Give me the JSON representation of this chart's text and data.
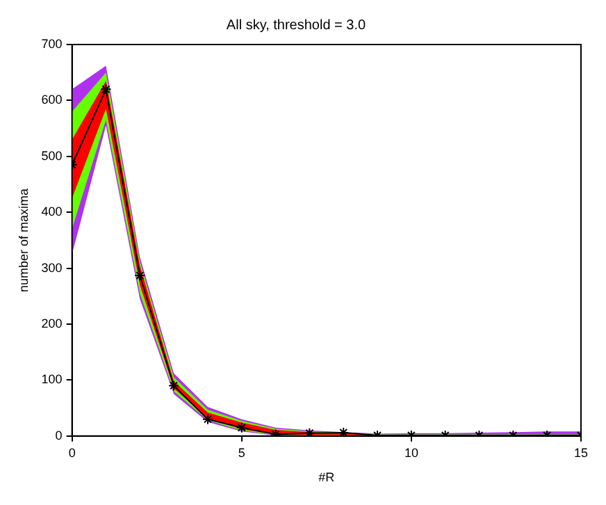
{
  "chart_data": {
    "type": "line",
    "title": "All sky, threshold = 3.0",
    "xlabel": "#R",
    "ylabel": "number of maxima",
    "x": [
      0,
      1,
      2,
      3,
      4,
      5,
      6,
      7,
      8,
      9,
      10,
      11,
      12,
      13,
      14,
      15
    ],
    "series": [
      {
        "color": "#000000",
        "marker": "cross",
        "values": [
          485,
          620,
          287,
          90,
          30,
          15,
          3,
          5,
          6,
          1,
          1,
          1,
          1,
          1,
          1,
          1
        ]
      },
      {
        "color": "#ff0000",
        "values": [
          null,
          null,
          null,
          null,
          null,
          null,
          null,
          null,
          null,
          null,
          null,
          null,
          null,
          null,
          null,
          null
        ],
        "lower": [
          425,
          585,
          270,
          85,
          32,
          12,
          3,
          2,
          2,
          1,
          1,
          1,
          1,
          1,
          1,
          1
        ],
        "upper": [
          530,
          635,
          305,
          98,
          42,
          24,
          11,
          7,
          5,
          2,
          2,
          2,
          2,
          2,
          2,
          2
        ]
      },
      {
        "color": "#66ff00",
        "values": [
          null,
          null,
          null,
          null,
          null,
          null,
          null,
          null,
          null,
          null,
          null,
          null,
          null,
          null,
          null,
          null
        ],
        "lower": [
          370,
          565,
          255,
          80,
          28,
          10,
          2,
          1,
          1,
          0,
          0,
          0,
          0,
          0,
          0,
          0
        ],
        "upper": [
          580,
          650,
          312,
          105,
          47,
          27,
          13,
          8,
          6,
          3,
          3,
          3,
          3,
          3,
          3,
          3
        ]
      },
      {
        "color": "#b030f0",
        "values": [
          null,
          null,
          null,
          null,
          null,
          null,
          null,
          null,
          null,
          null,
          null,
          null,
          null,
          null,
          null,
          null
        ],
        "lower": [
          325,
          555,
          245,
          75,
          25,
          8,
          1,
          0,
          0,
          0,
          0,
          0,
          0,
          0,
          0,
          0
        ],
        "upper": [
          620,
          662,
          320,
          112,
          52,
          30,
          15,
          10,
          7,
          4,
          5,
          5,
          6,
          7,
          8,
          8
        ]
      }
    ],
    "xlim": [
      0,
      15
    ],
    "xticks": [
      0,
      5,
      10,
      15
    ],
    "ylim": [
      0,
      700
    ],
    "yticks": [
      0,
      100,
      200,
      300,
      400,
      500,
      600,
      700
    ],
    "grid": false,
    "legend": false,
    "line_style": "solid"
  }
}
